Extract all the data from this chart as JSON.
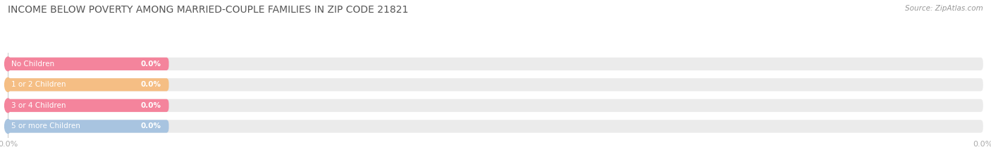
{
  "title": "INCOME BELOW POVERTY AMONG MARRIED-COUPLE FAMILIES IN ZIP CODE 21821",
  "source": "Source: ZipAtlas.com",
  "categories": [
    "No Children",
    "1 or 2 Children",
    "3 or 4 Children",
    "5 or more Children"
  ],
  "values": [
    0.0,
    0.0,
    0.0,
    0.0
  ],
  "bar_colors": [
    "#f4849c",
    "#f5be84",
    "#f4849c",
    "#a8c4e0"
  ],
  "bar_bg_color": "#ebebeb",
  "text_color_on_bar": "#ffffff",
  "title_color": "#555555",
  "source_color": "#999999",
  "background_color": "#ffffff",
  "tick_label_color": "#aaaaaa",
  "vline_color": "#cccccc",
  "title_fontsize": 10.0,
  "source_fontsize": 7.5,
  "bar_label_fontsize": 7.5,
  "val_label_fontsize": 7.5,
  "tick_fontsize": 8.0
}
